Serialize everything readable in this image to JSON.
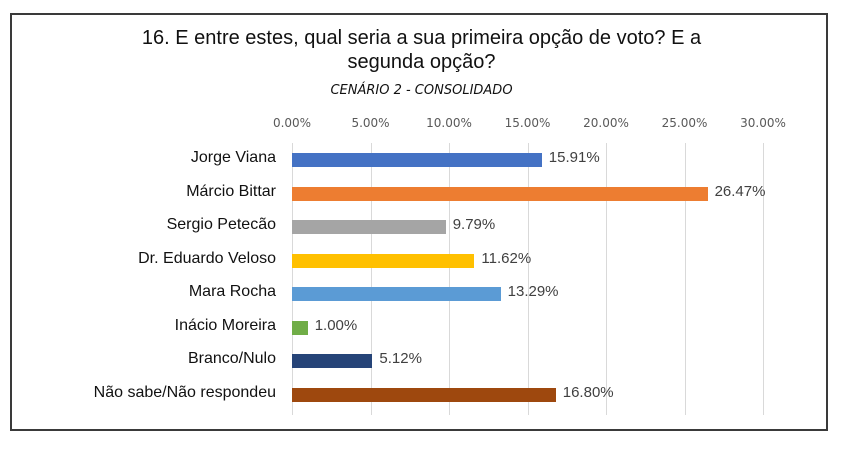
{
  "chart_data": {
    "type": "bar",
    "orientation": "horizontal",
    "title": "16. E entre estes, qual seria a sua primeira opção de voto? E a segunda opção?",
    "title_lines": [
      "16. E entre estes, qual seria a sua primeira opção de voto? E a",
      "segunda opção?"
    ],
    "subtitle": "CENÁRIO 2 - CONSOLIDADO",
    "xlabel": "",
    "ylabel": "",
    "xlim": [
      0,
      30
    ],
    "grid": true,
    "legend": "none",
    "x_ticks": [
      "0.00%",
      "5.00%",
      "10.00%",
      "15.00%",
      "20.00%",
      "25.00%",
      "30.00%"
    ],
    "categories": [
      "Jorge Viana",
      "Márcio Bittar",
      "Sergio Petecão",
      "Dr. Eduardo Veloso",
      "Mara Rocha",
      "Inácio Moreira",
      "Branco/Nulo",
      "Não sabe/Não respondeu"
    ],
    "values": [
      15.91,
      26.47,
      9.79,
      11.62,
      13.29,
      1.0,
      5.12,
      16.8
    ],
    "value_labels": [
      "15.91%",
      "26.47%",
      "9.79%",
      "11.62%",
      "13.29%",
      "1.00%",
      "5.12%",
      "16.80%"
    ],
    "colors": [
      "#4472c4",
      "#ed7d31",
      "#a5a5a5",
      "#ffc000",
      "#5b9bd5",
      "#70ad47",
      "#264478",
      "#9e480e"
    ]
  }
}
